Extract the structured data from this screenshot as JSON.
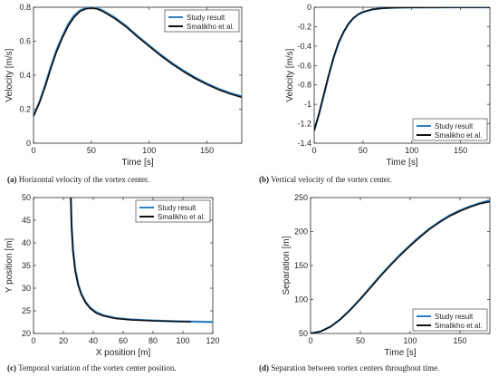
{
  "colors": {
    "study": "#2f7fc1",
    "smalikho": "#111111",
    "axis": "#262626"
  },
  "legend_labels": [
    "Study result",
    "Smalikho et al."
  ],
  "chart_data": [
    {
      "type": "line",
      "xlabel": "Time [s]",
      "ylabel": "Velocity [m/s]",
      "xlim": [
        0,
        180
      ],
      "ylim": [
        0,
        0.8
      ],
      "xticks": [
        "0",
        "50",
        "100",
        "150"
      ],
      "yticks": [
        "0",
        "0.2",
        "0.4",
        "0.6",
        "0.8"
      ],
      "legend": "top-right",
      "caption_tag": "(a)",
      "caption": "Horizontal velocity of the vortex center.",
      "series": [
        {
          "name": "Study result",
          "x": [
            0,
            5,
            10,
            15,
            20,
            25,
            30,
            35,
            40,
            45,
            50,
            55,
            60,
            65,
            70,
            80,
            90,
            100,
            110,
            120,
            130,
            140,
            150,
            160,
            170,
            180
          ],
          "y": [
            0.16,
            0.24,
            0.34,
            0.45,
            0.55,
            0.63,
            0.7,
            0.75,
            0.78,
            0.795,
            0.8,
            0.795,
            0.78,
            0.76,
            0.74,
            0.69,
            0.63,
            0.575,
            0.52,
            0.47,
            0.425,
            0.385,
            0.35,
            0.32,
            0.295,
            0.275
          ]
        },
        {
          "name": "Smalikho et al.",
          "x": [
            0,
            5,
            10,
            15,
            20,
            25,
            30,
            35,
            40,
            45,
            50,
            55,
            60,
            65,
            70,
            80,
            90,
            100,
            110,
            120,
            130,
            140,
            150,
            160,
            170,
            180
          ],
          "y": [
            0.16,
            0.235,
            0.33,
            0.44,
            0.54,
            0.62,
            0.69,
            0.74,
            0.775,
            0.79,
            0.795,
            0.79,
            0.775,
            0.755,
            0.735,
            0.685,
            0.625,
            0.57,
            0.515,
            0.465,
            0.42,
            0.38,
            0.345,
            0.315,
            0.29,
            0.27
          ]
        }
      ]
    },
    {
      "type": "line",
      "xlabel": "Time [s]",
      "ylabel": "Velocity [m/s]",
      "xlim": [
        0,
        180
      ],
      "ylim": [
        -1.4,
        0
      ],
      "xticks": [
        "0",
        "50",
        "100",
        "150"
      ],
      "yticks": [
        "0",
        "-0.2",
        "-0.4",
        "-0.6",
        "-0.8",
        "-1",
        "-1.2",
        "-1.4"
      ],
      "legend": "bottom-right",
      "caption_tag": "(b)",
      "caption": "Vertical velocity of the vortex center.",
      "series": [
        {
          "name": "Study result",
          "x": [
            0,
            5,
            10,
            15,
            20,
            25,
            30,
            35,
            40,
            45,
            50,
            60,
            70,
            80,
            90,
            100,
            120,
            140,
            160,
            180
          ],
          "y": [
            -1.27,
            -1.1,
            -0.9,
            -0.7,
            -0.52,
            -0.37,
            -0.26,
            -0.175,
            -0.115,
            -0.075,
            -0.05,
            -0.022,
            -0.01,
            -0.005,
            -0.003,
            -0.002,
            -0.001,
            0,
            0,
            0
          ]
        },
        {
          "name": "Smalikho et al.",
          "x": [
            0,
            5,
            10,
            15,
            20,
            25,
            30,
            35,
            40,
            45,
            50,
            60,
            70,
            80,
            90,
            100,
            120,
            140,
            160,
            180
          ],
          "y": [
            -1.27,
            -1.09,
            -0.89,
            -0.69,
            -0.51,
            -0.36,
            -0.255,
            -0.17,
            -0.112,
            -0.073,
            -0.048,
            -0.021,
            -0.01,
            -0.005,
            -0.003,
            -0.002,
            -0.001,
            0,
            0,
            0
          ]
        }
      ]
    },
    {
      "type": "line",
      "xlabel": "X position [m]",
      "ylabel": "Y position [m]",
      "xlim": [
        0,
        120
      ],
      "ylim": [
        20,
        50
      ],
      "xticks": [
        "0",
        "20",
        "40",
        "60",
        "80",
        "100",
        "120"
      ],
      "yticks": [
        "20",
        "25",
        "30",
        "35",
        "40",
        "45",
        "50"
      ],
      "legend": "top-right",
      "caption_tag": "(c)",
      "caption": "Temporal variation of the vortex center position.",
      "series": [
        {
          "name": "Study result",
          "x": [
            25,
            25.5,
            26.5,
            28,
            30,
            32,
            35,
            38,
            42,
            47,
            55,
            65,
            80,
            95,
            110,
            120
          ],
          "y": [
            50,
            44,
            38.5,
            34,
            30.8,
            28.8,
            26.9,
            25.7,
            24.7,
            24.0,
            23.4,
            23.1,
            22.85,
            22.7,
            22.6,
            22.55
          ]
        },
        {
          "name": "Smalikho et al.",
          "x": [
            25,
            25.4,
            26.3,
            27.8,
            29.8,
            32,
            35,
            38,
            42,
            47,
            55,
            65,
            80,
            95,
            105
          ],
          "y": [
            50,
            44,
            38.5,
            34,
            30.7,
            28.6,
            26.7,
            25.5,
            24.5,
            23.85,
            23.3,
            23.0,
            22.8,
            22.65,
            22.6
          ]
        }
      ]
    },
    {
      "type": "line",
      "xlabel": "Time [s]",
      "ylabel": "Separation [m]",
      "xlim": [
        0,
        180
      ],
      "ylim": [
        50,
        250
      ],
      "xticks": [
        "0",
        "50",
        "100",
        "150"
      ],
      "yticks": [
        "50",
        "100",
        "150",
        "200",
        "250"
      ],
      "legend": "bottom-right",
      "caption_tag": "(d)",
      "caption": "Separation between vortex centers throughout time.",
      "series": [
        {
          "name": "Study result",
          "x": [
            0,
            10,
            20,
            30,
            40,
            50,
            60,
            70,
            80,
            90,
            100,
            110,
            120,
            130,
            140,
            150,
            160,
            170,
            180
          ],
          "y": [
            50,
            53,
            60,
            71,
            85,
            101,
            118,
            135,
            151,
            166,
            180,
            193,
            205,
            215,
            224,
            231,
            237,
            242,
            246
          ]
        },
        {
          "name": "Smalikho et al.",
          "x": [
            0,
            10,
            20,
            30,
            40,
            50,
            60,
            70,
            80,
            90,
            100,
            110,
            120,
            130,
            140,
            150,
            160,
            170,
            180
          ],
          "y": [
            50,
            53,
            60,
            71,
            85,
            100.5,
            117,
            134,
            150,
            165,
            179,
            192,
            204,
            214,
            223,
            230,
            236,
            241,
            244
          ]
        }
      ]
    }
  ]
}
